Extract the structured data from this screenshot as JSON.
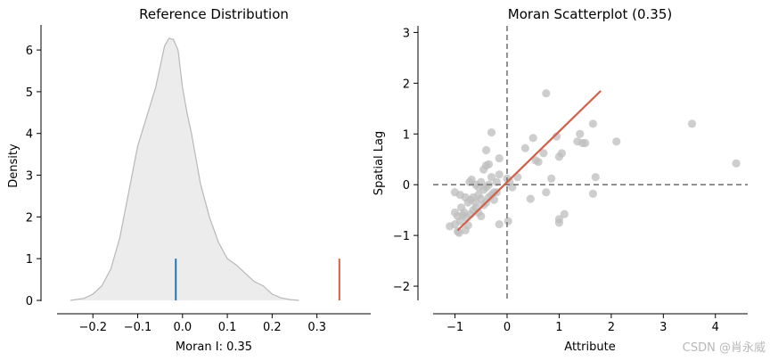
{
  "chart_data": [
    {
      "type": "area",
      "title": "Reference Distribution",
      "xlabel": "Moran I: 0.35",
      "ylabel": "Density",
      "xlim": [
        -0.28,
        0.42
      ],
      "ylim": [
        0,
        6.6
      ],
      "xticks": [
        "−0.2",
        "−0.1",
        "0.0",
        "0.1",
        "0.2",
        "0.3"
      ],
      "yticks": [
        "0",
        "1",
        "2",
        "3",
        "4",
        "5",
        "6"
      ],
      "xtick_values": [
        -0.2,
        -0.1,
        0.0,
        0.1,
        0.2,
        0.3
      ],
      "ytick_values": [
        0,
        1,
        2,
        3,
        4,
        5,
        6
      ],
      "grid": false,
      "density_curve": {
        "x": [
          -0.25,
          -0.22,
          -0.2,
          -0.18,
          -0.16,
          -0.14,
          -0.12,
          -0.1,
          -0.08,
          -0.06,
          -0.05,
          -0.04,
          -0.03,
          -0.02,
          -0.01,
          0.0,
          0.01,
          0.02,
          0.04,
          0.06,
          0.08,
          0.1,
          0.12,
          0.14,
          0.16,
          0.18,
          0.2,
          0.22,
          0.24,
          0.26
        ],
        "y": [
          0.0,
          0.05,
          0.15,
          0.35,
          0.75,
          1.5,
          2.6,
          3.7,
          4.4,
          5.1,
          5.6,
          6.1,
          6.28,
          6.25,
          6.0,
          5.1,
          4.5,
          4.0,
          2.8,
          2.0,
          1.4,
          1.0,
          0.85,
          0.65,
          0.45,
          0.35,
          0.15,
          0.06,
          0.02,
          0.0
        ]
      },
      "markers": [
        {
          "name": "expected-value-line",
          "x": -0.015,
          "height": 1.0,
          "color": "#1f77b4"
        },
        {
          "name": "observed-moran-line",
          "x": 0.35,
          "height": 1.0,
          "color": "#d1604b"
        }
      ]
    },
    {
      "type": "scatter",
      "title": "Moran Scatterplot (0.35)",
      "xlabel": "Attribute",
      "ylabel": "Spatial Lag",
      "xlim": [
        -1.42,
        4.62
      ],
      "ylim": [
        -2.28,
        3.13
      ],
      "xticks": [
        "−1",
        "0",
        "1",
        "2",
        "3",
        "4"
      ],
      "yticks": [
        "−2",
        "−1",
        "0",
        "1",
        "2",
        "3"
      ],
      "xtick_values": [
        -1,
        0,
        1,
        2,
        3,
        4
      ],
      "ytick_values": [
        -2,
        -1,
        0,
        1,
        2,
        3
      ],
      "grid": false,
      "point_color": "#bdbdbd",
      "points": [
        [
          -1.1,
          -0.82
        ],
        [
          -1.0,
          -0.78
        ],
        [
          -0.95,
          -0.92
        ],
        [
          -0.92,
          -0.95
        ],
        [
          -0.9,
          -0.72
        ],
        [
          -0.85,
          -0.6
        ],
        [
          -0.8,
          -0.9
        ],
        [
          -0.75,
          -0.8
        ],
        [
          -1.0,
          -0.55
        ],
        [
          -0.95,
          -0.62
        ],
        [
          -0.88,
          -0.45
        ],
        [
          -0.82,
          -0.55
        ],
        [
          -0.78,
          -0.65
        ],
        [
          -0.7,
          -0.58
        ],
        [
          -0.65,
          -0.5
        ],
        [
          -0.6,
          -0.45
        ],
        [
          -0.55,
          -0.55
        ],
        [
          -0.5,
          -0.62
        ],
        [
          -0.45,
          -0.4
        ],
        [
          -0.4,
          -0.35
        ],
        [
          -0.35,
          -0.25
        ],
        [
          -0.3,
          -0.2
        ],
        [
          -0.25,
          -0.3
        ],
        [
          -0.2,
          -0.15
        ],
        [
          -0.7,
          -0.3
        ],
        [
          -0.65,
          -0.25
        ],
        [
          -0.6,
          -0.35
        ],
        [
          -0.55,
          -0.2
        ],
        [
          -0.5,
          -0.28
        ],
        [
          -0.45,
          -0.1
        ],
        [
          -0.4,
          -0.05
        ],
        [
          -0.35,
          0.0
        ],
        [
          -1.0,
          -0.15
        ],
        [
          -0.9,
          -0.2
        ],
        [
          -0.8,
          -0.25
        ],
        [
          -0.75,
          -0.35
        ],
        [
          -0.72,
          0.05
        ],
        [
          -0.68,
          0.1
        ],
        [
          -0.6,
          0.0
        ],
        [
          -0.55,
          -0.05
        ],
        [
          -0.5,
          0.05
        ],
        [
          -0.45,
          0.3
        ],
        [
          -0.4,
          0.38
        ],
        [
          -0.35,
          0.4
        ],
        [
          -0.3,
          0.15
        ],
        [
          -0.25,
          -0.15
        ],
        [
          -0.2,
          0.05
        ],
        [
          -0.15,
          0.2
        ],
        [
          -0.3,
          1.03
        ],
        [
          -0.4,
          0.68
        ],
        [
          -0.15,
          0.52
        ],
        [
          0.0,
          0.12
        ],
        [
          0.05,
          0.05
        ],
        [
          0.1,
          -0.05
        ],
        [
          0.2,
          0.15
        ],
        [
          0.02,
          -0.72
        ],
        [
          -0.15,
          -0.78
        ],
        [
          0.35,
          0.72
        ],
        [
          0.5,
          0.92
        ],
        [
          0.55,
          0.48
        ],
        [
          0.6,
          0.45
        ],
        [
          0.7,
          0.62
        ],
        [
          0.45,
          -0.28
        ],
        [
          0.75,
          -0.15
        ],
        [
          0.85,
          0.12
        ],
        [
          0.95,
          0.95
        ],
        [
          1.0,
          0.55
        ],
        [
          1.05,
          0.62
        ],
        [
          1.0,
          -0.68
        ],
        [
          1.0,
          -0.75
        ],
        [
          1.1,
          -0.58
        ],
        [
          1.35,
          0.85
        ],
        [
          1.4,
          1.0
        ],
        [
          1.45,
          0.82
        ],
        [
          1.5,
          0.82
        ],
        [
          1.65,
          -0.18
        ],
        [
          1.7,
          0.15
        ],
        [
          1.65,
          1.2
        ],
        [
          2.1,
          0.85
        ],
        [
          0.75,
          1.8
        ],
        [
          3.55,
          1.2
        ],
        [
          4.4,
          0.42
        ]
      ],
      "regression_line": {
        "x": [
          -0.95,
          1.8
        ],
        "y": [
          -0.9,
          1.85
        ],
        "color": "#d1604b"
      },
      "reference_lines": {
        "vertical_x": 0,
        "horizontal_y": 0,
        "style": "dashed",
        "color": "#777777"
      }
    }
  ],
  "watermark": "CSDN @肖永威"
}
